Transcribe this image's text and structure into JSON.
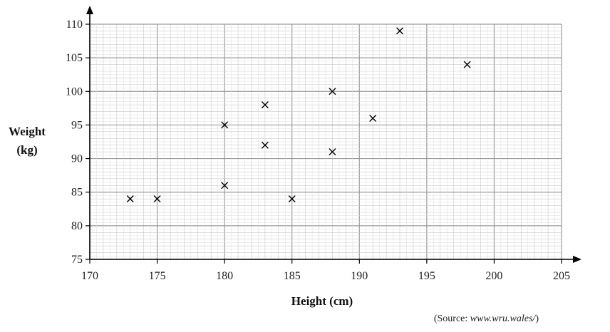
{
  "chart_data": {
    "type": "scatter",
    "title": "",
    "xlabel": "Height (cm)",
    "ylabel_lines": [
      "Weight",
      "(kg)"
    ],
    "xlim": [
      170,
      205
    ],
    "ylim": [
      75,
      110
    ],
    "x_ticks": [
      170,
      175,
      180,
      185,
      190,
      195,
      200,
      205
    ],
    "y_ticks": [
      75,
      80,
      85,
      90,
      95,
      100,
      105,
      110
    ],
    "grid": true,
    "marker": "x",
    "points": [
      {
        "x": 173,
        "y": 84
      },
      {
        "x": 175,
        "y": 84
      },
      {
        "x": 180,
        "y": 86
      },
      {
        "x": 180,
        "y": 95
      },
      {
        "x": 183,
        "y": 92
      },
      {
        "x": 183,
        "y": 98
      },
      {
        "x": 185,
        "y": 84
      },
      {
        "x": 188,
        "y": 91
      },
      {
        "x": 188,
        "y": 100
      },
      {
        "x": 191,
        "y": 96
      },
      {
        "x": 193,
        "y": 109
      },
      {
        "x": 198,
        "y": 104
      }
    ]
  },
  "source": {
    "prefix": "(Source: ",
    "url": "www.wru.wales/",
    "suffix": ")"
  }
}
